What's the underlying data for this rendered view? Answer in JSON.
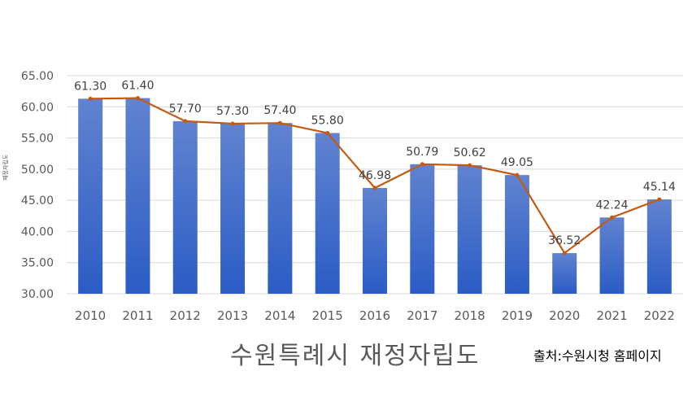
{
  "chart_data": {
    "type": "bar",
    "title": "수원특례시 재정자립도",
    "source": "출처:수원시청 홈페이지",
    "ylabel": "재정자립도",
    "categories": [
      "2010",
      "2011",
      "2012",
      "2013",
      "2014",
      "2015",
      "2016",
      "2017",
      "2018",
      "2019",
      "2020",
      "2021",
      "2022"
    ],
    "values": [
      61.3,
      61.4,
      57.7,
      57.3,
      57.4,
      55.8,
      46.98,
      50.79,
      50.62,
      49.05,
      36.52,
      42.24,
      45.14
    ],
    "data_labels": [
      "61.30",
      "61.40",
      "57.70",
      "57.30",
      "57.40",
      "55.80",
      "46.98",
      "50.79",
      "50.62",
      "49.05",
      "36.52",
      "42.24",
      "45.14"
    ],
    "yticks": [
      "30.00",
      "35.00",
      "40.00",
      "45.00",
      "50.00",
      "55.00",
      "60.00",
      "65.00"
    ],
    "ylim": [
      30,
      65
    ],
    "overlay_line": true,
    "grid": true,
    "colors": {
      "bar_top": "#6183d0",
      "bar_bottom": "#2b5cc5",
      "line": "#c55a11",
      "grid": "#d9d9d9",
      "axis_text": "#595959"
    }
  }
}
